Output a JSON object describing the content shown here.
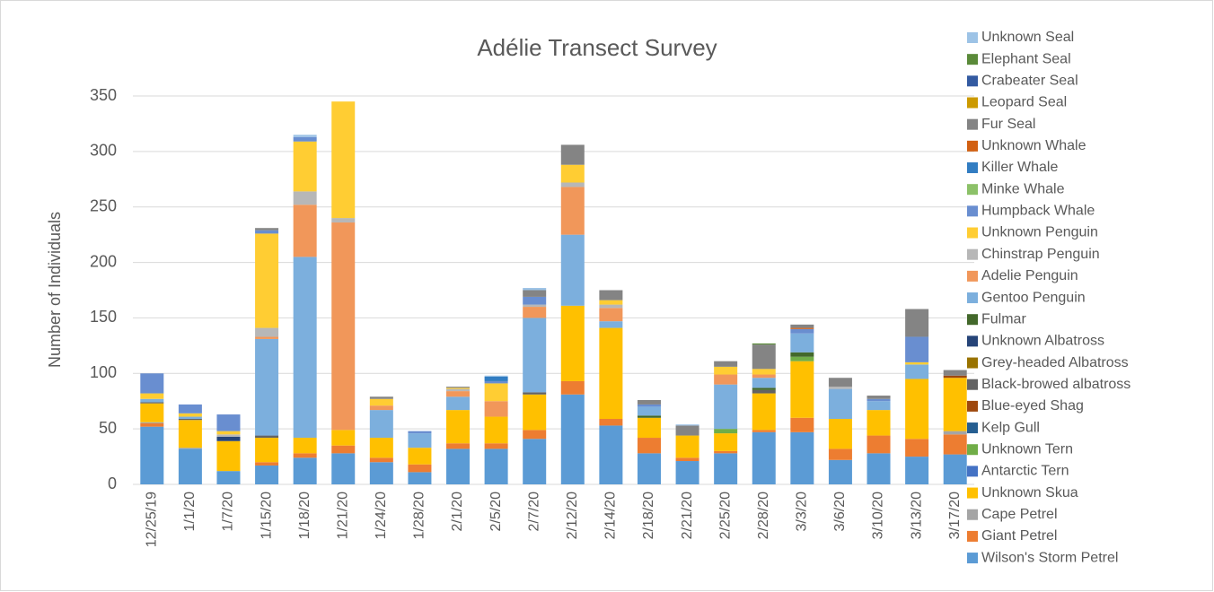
{
  "chart_data": {
    "type": "bar",
    "stacked": true,
    "title": "Adélie Transect Survey",
    "y_label": "Number of Individuals",
    "categories": [
      "12/25/19",
      "1/1/20",
      "1/7/20",
      "1/15/20",
      "1/18/20",
      "1/21/20",
      "1/24/20",
      "1/28/20",
      "2/1/20",
      "2/5/20",
      "2/7/20",
      "2/12/20",
      "2/14/20",
      "2/18/20",
      "2/21/20",
      "2/25/20",
      "2/28/20",
      "3/3/20",
      "3/6/20",
      "3/10/20",
      "3/13/20",
      "3/17/20"
    ],
    "ylim": [
      0,
      350
    ],
    "yticks": [
      0,
      50,
      100,
      150,
      200,
      250,
      300,
      350
    ],
    "grid": true,
    "legend": "right",
    "series": [
      {
        "name": "Wilson's Storm Petrel",
        "color": "#5b9bd5",
        "values": [
          52,
          32,
          12,
          17,
          24,
          28,
          20,
          11,
          32,
          32,
          41,
          81,
          53,
          28,
          21,
          28,
          47,
          47,
          22,
          28,
          25,
          27
        ]
      },
      {
        "name": "Giant Petrel",
        "color": "#ed7d31",
        "values": [
          3,
          0,
          0,
          3,
          4,
          7,
          4,
          7,
          5,
          5,
          8,
          12,
          6,
          14,
          3,
          2,
          2,
          13,
          10,
          16,
          16,
          18
        ]
      },
      {
        "name": "Cape Petrel",
        "color": "#a5a5a5",
        "values": [
          1,
          1,
          0,
          0,
          0,
          0,
          0,
          0,
          0,
          0,
          0,
          0,
          0,
          0,
          0,
          0,
          0,
          0,
          0,
          0,
          0,
          3
        ]
      },
      {
        "name": "Unknown Skua",
        "color": "#ffc000",
        "values": [
          17,
          25,
          27,
          22,
          14,
          14,
          18,
          15,
          30,
          24,
          32,
          68,
          82,
          18,
          20,
          16,
          33,
          51,
          27,
          23,
          54,
          48
        ]
      },
      {
        "name": "Antarctic Tern",
        "color": "#4472c4",
        "values": [
          0,
          0,
          0,
          0,
          0,
          0,
          0,
          0,
          0,
          0,
          0,
          0,
          0,
          0,
          0,
          0,
          0,
          0,
          0,
          0,
          0,
          0
        ]
      },
      {
        "name": "Unknown Tern",
        "color": "#70ad47",
        "values": [
          0,
          0,
          0,
          0,
          0,
          0,
          0,
          0,
          0,
          0,
          0,
          0,
          0,
          0,
          0,
          4,
          0,
          4,
          0,
          0,
          0,
          0
        ]
      },
      {
        "name": "Kelp Gull",
        "color": "#255e91",
        "values": [
          0,
          0,
          0,
          0,
          0,
          0,
          0,
          0,
          0,
          0,
          0,
          0,
          0,
          0,
          0,
          0,
          0,
          0,
          0,
          0,
          0,
          0
        ]
      },
      {
        "name": "Blue-eyed Shag",
        "color": "#9e480e",
        "values": [
          0,
          0,
          0,
          0,
          0,
          0,
          0,
          0,
          0,
          0,
          0,
          0,
          0,
          0,
          0,
          0,
          0,
          0,
          0,
          0,
          0,
          2
        ]
      },
      {
        "name": "Black-browed albatross",
        "color": "#636363",
        "values": [
          1,
          1,
          0,
          2,
          0,
          0,
          0,
          0,
          0,
          0,
          2,
          0,
          0,
          0,
          0,
          0,
          3,
          0,
          0,
          0,
          0,
          0
        ]
      },
      {
        "name": "Grey-headed Albatross",
        "color": "#997300",
        "values": [
          0,
          0,
          0,
          0,
          0,
          0,
          0,
          0,
          0,
          0,
          0,
          0,
          0,
          0,
          0,
          0,
          0,
          0,
          0,
          0,
          0,
          0
        ]
      },
      {
        "name": "Unknown Albatross",
        "color": "#264478",
        "values": [
          0,
          0,
          4,
          0,
          0,
          0,
          0,
          0,
          0,
          0,
          0,
          0,
          0,
          0,
          0,
          0,
          0,
          0,
          0,
          0,
          0,
          0
        ]
      },
      {
        "name": "Fulmar",
        "color": "#43682b",
        "values": [
          0,
          0,
          0,
          0,
          0,
          0,
          0,
          0,
          0,
          0,
          0,
          0,
          0,
          2,
          0,
          0,
          2,
          4,
          0,
          0,
          0,
          0
        ]
      },
      {
        "name": "Gentoo Penguin",
        "color": "#7cafdd",
        "values": [
          3,
          2,
          0,
          87,
          163,
          0,
          25,
          13,
          12,
          0,
          67,
          64,
          6,
          8,
          0,
          40,
          9,
          17,
          27,
          8,
          13,
          0
        ]
      },
      {
        "name": "Adelie Penguin",
        "color": "#f1975a",
        "values": [
          0,
          0,
          0,
          2,
          47,
          187,
          4,
          0,
          5,
          14,
          10,
          43,
          12,
          0,
          0,
          9,
          3,
          0,
          0,
          0,
          0,
          0
        ]
      },
      {
        "name": "Chinstrap Penguin",
        "color": "#b7b7b7",
        "values": [
          0,
          0,
          2,
          8,
          12,
          4,
          0,
          0,
          2,
          0,
          2,
          4,
          3,
          0,
          0,
          0,
          0,
          0,
          2,
          0,
          0,
          0
        ]
      },
      {
        "name": "Unknown Penguin",
        "color": "#ffcd33",
        "values": [
          5,
          3,
          3,
          85,
          45,
          105,
          6,
          0,
          1,
          16,
          0,
          16,
          4,
          0,
          0,
          7,
          5,
          0,
          0,
          0,
          2,
          0
        ]
      },
      {
        "name": "Humpback Whale",
        "color": "#698ed0",
        "values": [
          18,
          8,
          15,
          3,
          4,
          0,
          0,
          2,
          0,
          2,
          7,
          0,
          0,
          2,
          0,
          0,
          0,
          4,
          0,
          2,
          23,
          0
        ]
      },
      {
        "name": "Minke Whale",
        "color": "#8cc168",
        "values": [
          0,
          0,
          0,
          0,
          0,
          0,
          0,
          0,
          0,
          0,
          0,
          0,
          0,
          0,
          0,
          0,
          0,
          0,
          0,
          0,
          0,
          0
        ]
      },
      {
        "name": "Killer Whale",
        "color": "#327dc2",
        "values": [
          0,
          0,
          0,
          0,
          0,
          0,
          0,
          0,
          0,
          4,
          0,
          0,
          0,
          0,
          0,
          0,
          0,
          0,
          0,
          0,
          0,
          0
        ]
      },
      {
        "name": "Unknown Whale",
        "color": "#d26012",
        "values": [
          0,
          0,
          0,
          0,
          0,
          0,
          0,
          0,
          0,
          0,
          0,
          0,
          0,
          0,
          0,
          0,
          0,
          1,
          0,
          0,
          0,
          0
        ]
      },
      {
        "name": "Fur Seal",
        "color": "#848484",
        "values": [
          0,
          0,
          0,
          2,
          0,
          0,
          2,
          0,
          1,
          0,
          6,
          18,
          9,
          4,
          9,
          5,
          22,
          3,
          8,
          3,
          25,
          5
        ]
      },
      {
        "name": "Leopard Seal",
        "color": "#cc9a00",
        "values": [
          0,
          0,
          0,
          0,
          0,
          0,
          0,
          0,
          0,
          0,
          0,
          0,
          0,
          0,
          0,
          0,
          0,
          0,
          0,
          0,
          0,
          0
        ]
      },
      {
        "name": "Crabeater Seal",
        "color": "#335aa1",
        "values": [
          0,
          0,
          0,
          0,
          0,
          0,
          0,
          0,
          0,
          0,
          0,
          0,
          0,
          0,
          0,
          0,
          0,
          0,
          0,
          0,
          0,
          0
        ]
      },
      {
        "name": "Elephant Seal",
        "color": "#5a8a39",
        "values": [
          0,
          0,
          0,
          0,
          0,
          0,
          0,
          0,
          0,
          0,
          0,
          0,
          0,
          0,
          0,
          0,
          1,
          0,
          0,
          0,
          0,
          0
        ]
      },
      {
        "name": "Unknown Seal",
        "color": "#9dc3e6",
        "values": [
          0,
          0,
          0,
          0,
          2,
          0,
          0,
          0,
          0,
          1,
          2,
          0,
          0,
          0,
          1,
          0,
          0,
          0,
          0,
          0,
          0,
          0
        ]
      }
    ]
  }
}
